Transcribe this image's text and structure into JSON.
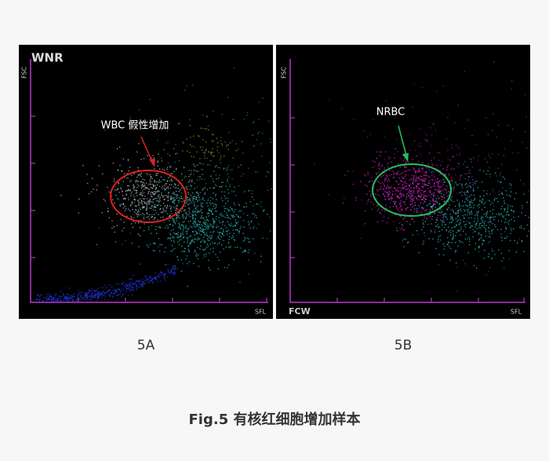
{
  "panels": [
    {
      "title": "WNR",
      "y_axis": "FSC",
      "x_axis": "SFL",
      "annotation": "WBC 假性增加",
      "label": "5A"
    },
    {
      "y_axis": "FSC",
      "x_axis_left": "FCW",
      "x_axis": "SFL",
      "annotation": "NRBC",
      "label": "5B"
    }
  ],
  "caption": "Fig.5 有核红细胞增加样本"
}
